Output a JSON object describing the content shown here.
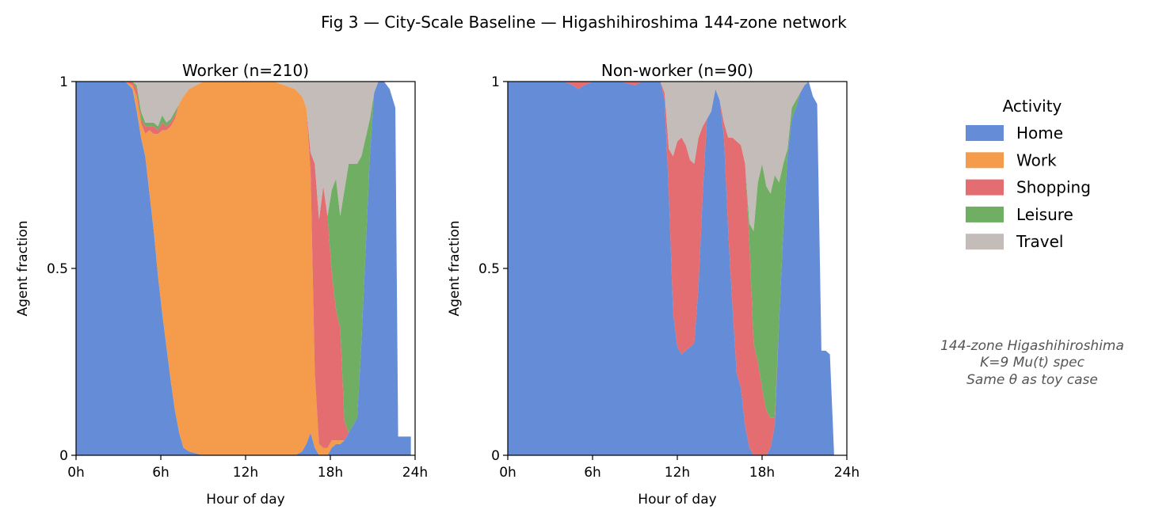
{
  "figure": {
    "title": "Fig 3 — City-Scale Baseline — Higashihiroshima 144-zone network"
  },
  "legend": {
    "title": "Activity",
    "entries": [
      {
        "name": "Home",
        "color": "#4a78cf"
      },
      {
        "name": "Work",
        "color": "#f28b2c"
      },
      {
        "name": "Shopping",
        "color": "#de5457"
      },
      {
        "name": "Leisure",
        "color": "#57a049"
      },
      {
        "name": "Travel",
        "color": "#b9b0ab"
      }
    ]
  },
  "annotation": {
    "lines": [
      "144-zone Higashihiroshima",
      "K=9 Mu(t) spec",
      "Same θ as toy case"
    ]
  },
  "chart_data": [
    {
      "type": "area",
      "stacked": true,
      "title": "Worker  (n=210)",
      "xlabel": "Hour of day",
      "ylabel": "Agent fraction",
      "xlim": [
        0,
        24
      ],
      "ylim": [
        0,
        1
      ],
      "xticks": [
        0,
        6,
        12,
        18,
        24
      ],
      "xtick_labels": [
        "0h",
        "6h",
        "12h",
        "18h",
        "24h"
      ],
      "yticks": [
        0,
        0.5,
        1
      ],
      "ytick_labels": [
        "0",
        "0.5",
        "1"
      ],
      "x": [
        0,
        3.5,
        4,
        4.3,
        4.6,
        4.9,
        5.2,
        5.5,
        5.8,
        6.1,
        6.4,
        6.7,
        7,
        7.3,
        7.6,
        8,
        9,
        10,
        12,
        14,
        15.5,
        16,
        16.3,
        16.6,
        16.9,
        17.2,
        17.5,
        17.8,
        18.1,
        18.4,
        18.7,
        19,
        19.3,
        19.6,
        19.9,
        20.2,
        20.5,
        20.8,
        21.1,
        21.4,
        21.8,
        22.2,
        22.6,
        22.8,
        23,
        23.4,
        23.7
      ],
      "series": [
        {
          "name": "Home",
          "color": "#4a78cf",
          "values": [
            1,
            1,
            0.98,
            0.92,
            0.85,
            0.8,
            0.7,
            0.6,
            0.48,
            0.38,
            0.29,
            0.2,
            0.12,
            0.06,
            0.02,
            0.01,
            0,
            0,
            0,
            0,
            0,
            0.01,
            0.03,
            0.06,
            0.02,
            0,
            0,
            0,
            0.02,
            0.03,
            0.03,
            0.04,
            0.06,
            0.08,
            0.1,
            0.3,
            0.55,
            0.8,
            0.97,
            1,
            1,
            0.98,
            0.93,
            0.05,
            0.05,
            0.05,
            0.05
          ]
        },
        {
          "name": "Work",
          "color": "#f28b2c",
          "values": [
            0,
            0,
            0.01,
            0.04,
            0.04,
            0.06,
            0.17,
            0.26,
            0.38,
            0.49,
            0.58,
            0.68,
            0.78,
            0.88,
            0.94,
            0.97,
            1,
            1,
            1,
            1,
            0.98,
            0.95,
            0.9,
            0.7,
            0.2,
            0.03,
            0.02,
            0.02,
            0.02,
            0.01,
            0.01,
            0,
            0,
            0,
            0,
            0,
            0,
            0,
            0,
            0,
            0,
            0,
            0,
            0,
            0,
            0,
            0
          ]
        },
        {
          "name": "Shopping",
          "color": "#de5457",
          "values": [
            0,
            0,
            0.01,
            0.02,
            0.01,
            0.02,
            0.01,
            0.02,
            0.01,
            0.02,
            0.01,
            0.01,
            0.01,
            0,
            0,
            0,
            0,
            0,
            0,
            0,
            0,
            0,
            0,
            0.05,
            0.56,
            0.6,
            0.7,
            0.62,
            0.45,
            0.35,
            0.3,
            0.05,
            0,
            0,
            0,
            0,
            0,
            0,
            0,
            0,
            0,
            0,
            0,
            0,
            0,
            0,
            0
          ]
        },
        {
          "name": "Leisure",
          "color": "#57a049",
          "values": [
            0,
            0,
            0,
            0.01,
            0.02,
            0.01,
            0.01,
            0.01,
            0.01,
            0.02,
            0.01,
            0.01,
            0.01,
            0,
            0,
            0,
            0,
            0,
            0,
            0,
            0,
            0,
            0,
            0,
            0,
            0,
            0,
            0,
            0.22,
            0.35,
            0.3,
            0.62,
            0.72,
            0.7,
            0.68,
            0.5,
            0.3,
            0.1,
            0,
            0,
            0,
            0,
            0,
            0,
            0,
            0,
            0
          ]
        },
        {
          "name": "Travel",
          "color": "#b9b0ab",
          "values": [
            0,
            0,
            0,
            0.01,
            0.08,
            0.11,
            0.11,
            0.11,
            0.12,
            0.09,
            0.11,
            0.1,
            0.08,
            0.06,
            0.04,
            0.02,
            0,
            0,
            0,
            0,
            0.02,
            0.04,
            0.07,
            0.19,
            0.22,
            0.37,
            0.28,
            0.36,
            0.29,
            0.26,
            0.36,
            0.29,
            0.22,
            0.22,
            0.22,
            0.2,
            0.15,
            0.1,
            0.03,
            0,
            0,
            0,
            0,
            0,
            0,
            0,
            0
          ]
        }
      ]
    },
    {
      "type": "area",
      "stacked": true,
      "title": "Non-worker  (n=90)",
      "xlabel": "Hour of day",
      "ylabel": "Agent fraction",
      "xlim": [
        0,
        24
      ],
      "ylim": [
        0,
        1
      ],
      "xticks": [
        0,
        6,
        12,
        18,
        24
      ],
      "xtick_labels": [
        "0h",
        "6h",
        "12h",
        "18h",
        "24h"
      ],
      "yticks": [
        0,
        0.5,
        1
      ],
      "ytick_labels": [
        "0",
        "0.5",
        "1"
      ],
      "x": [
        0,
        4,
        4.6,
        5,
        5.4,
        6,
        7,
        8,
        9,
        9.5,
        10,
        10.5,
        10.8,
        11.1,
        11.4,
        11.7,
        12,
        12.3,
        12.6,
        12.9,
        13.2,
        13.5,
        13.8,
        14.1,
        14.4,
        14.7,
        15,
        15.3,
        15.6,
        15.9,
        16.2,
        16.5,
        16.8,
        17.1,
        17.4,
        17.7,
        18,
        18.3,
        18.6,
        18.9,
        19.2,
        19.5,
        19.8,
        20.1,
        20.4,
        20.7,
        21,
        21.3,
        21.6,
        21.9,
        22.2,
        22.5,
        22.8,
        23.1
      ],
      "series": [
        {
          "name": "Home",
          "color": "#4a78cf",
          "values": [
            1,
            1,
            0.99,
            0.98,
            0.99,
            1,
            1,
            1,
            0.99,
            1,
            1,
            1,
            1,
            0.95,
            0.7,
            0.38,
            0.29,
            0.27,
            0.28,
            0.29,
            0.3,
            0.45,
            0.7,
            0.9,
            0.92,
            0.98,
            0.95,
            0.85,
            0.6,
            0.4,
            0.22,
            0.18,
            0.08,
            0.02,
            0,
            0,
            0,
            0,
            0.02,
            0.08,
            0.35,
            0.6,
            0.8,
            0.9,
            0.93,
            0.97,
            0.99,
            1,
            0.96,
            0.94,
            0.28,
            0.28,
            0.27,
            0
          ]
        },
        {
          "name": "Work",
          "color": "#f28b2c",
          "values": [
            0,
            0,
            0,
            0,
            0,
            0,
            0,
            0,
            0,
            0,
            0,
            0,
            0,
            0,
            0,
            0,
            0,
            0,
            0,
            0,
            0,
            0,
            0,
            0,
            0,
            0,
            0,
            0,
            0,
            0,
            0,
            0,
            0,
            0,
            0,
            0,
            0,
            0,
            0,
            0,
            0,
            0,
            0,
            0,
            0,
            0,
            0,
            0,
            0,
            0,
            0,
            0,
            0,
            0
          ]
        },
        {
          "name": "Shopping",
          "color": "#de5457",
          "values": [
            0,
            0,
            0.01,
            0.02,
            0.01,
            0,
            0,
            0,
            0.01,
            0,
            0,
            0,
            0,
            0.02,
            0.12,
            0.42,
            0.55,
            0.58,
            0.55,
            0.5,
            0.48,
            0.4,
            0.18,
            0,
            0,
            0,
            0,
            0.04,
            0.25,
            0.45,
            0.62,
            0.65,
            0.7,
            0.55,
            0.3,
            0.25,
            0.18,
            0.12,
            0.08,
            0.02,
            0,
            0,
            0,
            0,
            0,
            0,
            0,
            0,
            0,
            0,
            0,
            0,
            0,
            0
          ]
        },
        {
          "name": "Leisure",
          "color": "#57a049",
          "values": [
            0,
            0,
            0,
            0,
            0,
            0,
            0,
            0,
            0,
            0,
            0,
            0,
            0,
            0,
            0,
            0,
            0,
            0,
            0,
            0,
            0,
            0,
            0,
            0,
            0,
            0,
            0,
            0,
            0,
            0,
            0,
            0,
            0,
            0.05,
            0.3,
            0.48,
            0.6,
            0.6,
            0.6,
            0.65,
            0.38,
            0.18,
            0.02,
            0.03,
            0.02,
            0,
            0,
            0,
            0,
            0,
            0,
            0,
            0,
            0
          ]
        },
        {
          "name": "Travel",
          "color": "#b9b0ab",
          "values": [
            0,
            0,
            0,
            0,
            0,
            0,
            0,
            0,
            0,
            0,
            0,
            0,
            0,
            0.03,
            0.18,
            0.2,
            0.16,
            0.15,
            0.17,
            0.21,
            0.22,
            0.15,
            0.12,
            0.1,
            0.08,
            0.02,
            0.05,
            0.11,
            0.15,
            0.15,
            0.16,
            0.17,
            0.22,
            0.38,
            0.4,
            0.27,
            0.22,
            0.28,
            0.3,
            0.25,
            0.27,
            0.22,
            0.18,
            0.07,
            0.05,
            0.03,
            0.01,
            0,
            0,
            0,
            0,
            0,
            0,
            0
          ]
        }
      ]
    }
  ]
}
